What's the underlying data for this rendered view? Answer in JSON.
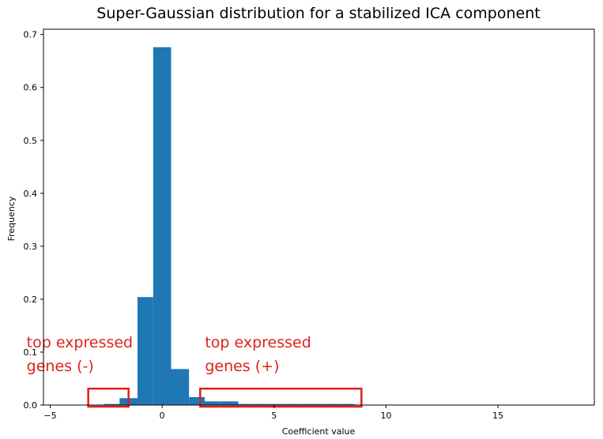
{
  "chart_data": {
    "type": "bar",
    "title": "Super-Gaussian distribution for a stabilized ICA component",
    "xlabel": "Coefficient value",
    "ylabel": "Frequency",
    "xlim": [
      -5.3,
      19.3
    ],
    "ylim": [
      0,
      0.71
    ],
    "xticks": [
      -5,
      0,
      5,
      10,
      15
    ],
    "yticks": [
      0.0,
      0.1,
      0.2,
      0.3,
      0.4,
      0.5,
      0.6,
      0.7
    ],
    "ytick_labels": [
      "0.0",
      "0.1",
      "0.2",
      "0.3",
      "0.4",
      "0.5",
      "0.6",
      "0.7"
    ],
    "grid": false,
    "bar_color": "#1f77b4",
    "annotation_color": "#e0201b",
    "bins": [
      {
        "x0": -2.6,
        "x1": -1.9,
        "value": 0.002
      },
      {
        "x0": -1.9,
        "x1": -1.1,
        "value": 0.013
      },
      {
        "x0": -1.1,
        "x1": -0.4,
        "value": 0.204
      },
      {
        "x0": -0.4,
        "x1": 0.4,
        "value": 0.676
      },
      {
        "x0": 0.4,
        "x1": 1.2,
        "value": 0.068
      },
      {
        "x0": 1.2,
        "x1": 1.9,
        "value": 0.015
      },
      {
        "x0": 1.9,
        "x1": 2.6,
        "value": 0.007
      },
      {
        "x0": 2.6,
        "x1": 3.4,
        "value": 0.007
      },
      {
        "x0": 3.4,
        "x1": 4.1,
        "value": 0.002
      },
      {
        "x0": 4.1,
        "x1": 4.8,
        "value": 0.002
      },
      {
        "x0": 4.8,
        "x1": 5.6,
        "value": 0.002
      },
      {
        "x0": 5.6,
        "x1": 6.3,
        "value": 0.002
      },
      {
        "x0": 6.3,
        "x1": 7.1,
        "value": 0.002
      },
      {
        "x0": 7.1,
        "x1": 7.8,
        "value": 0.002
      },
      {
        "x0": 7.8,
        "x1": 8.6,
        "value": 0.002
      }
    ],
    "annotations": [
      {
        "lines": [
          "top expressed",
          "genes (-)"
        ],
        "box_x": [
          -3.3,
          -1.5
        ],
        "box_y": [
          -0.003,
          0.031
        ]
      },
      {
        "lines": [
          "top expressed",
          "genes (+)"
        ],
        "box_x": [
          1.7,
          8.9
        ],
        "box_y": [
          -0.003,
          0.031
        ]
      }
    ]
  }
}
